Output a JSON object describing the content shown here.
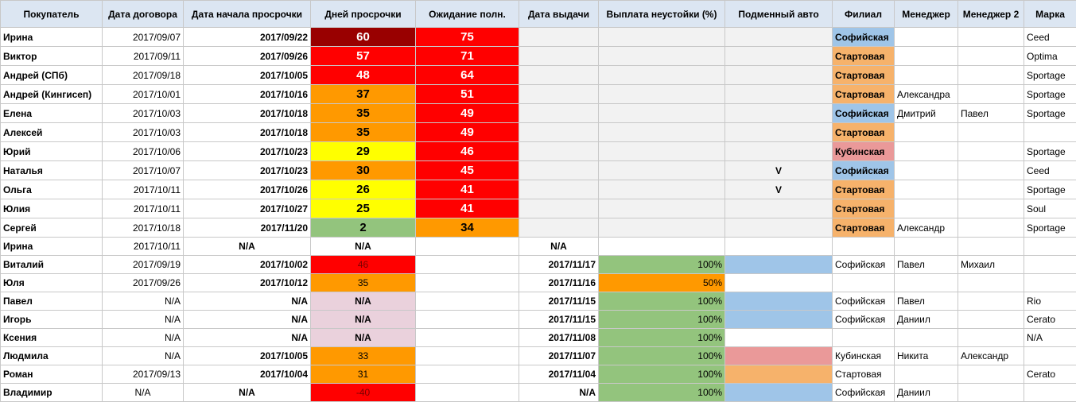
{
  "headers": {
    "buyer": "Покупатель",
    "contract_date": "Дата договора",
    "overdue_start": "Дата начала просрочки",
    "overdue_days": "Дней просрочки",
    "wait_full": "Ожидание полн.",
    "issue_date": "Дата выдачи",
    "penalty": "Выплата неустойки (%)",
    "replacement_car": "Подменный авто",
    "branch": "Филиал",
    "manager": "Менеджер",
    "manager2": "Менеджер 2",
    "brand": "Марка"
  },
  "rows": [
    {
      "buyer": "Ирина",
      "contract_date": "2017/09/07",
      "overdue_start": "2017/09/22",
      "overdue_days": "60",
      "wait_full": "75",
      "issue_date": "",
      "penalty": "",
      "replacement_car": "",
      "branch": "Софийская",
      "manager": "",
      "manager2": "",
      "brand": "Ceed"
    },
    {
      "buyer": "Виктор",
      "contract_date": "2017/09/11",
      "overdue_start": "2017/09/26",
      "overdue_days": "57",
      "wait_full": "71",
      "issue_date": "",
      "penalty": "",
      "replacement_car": "",
      "branch": "Стартовая",
      "manager": "",
      "manager2": "",
      "brand": "Optima"
    },
    {
      "buyer": "Андрей (СПб)",
      "contract_date": "2017/09/18",
      "overdue_start": "2017/10/05",
      "overdue_days": "48",
      "wait_full": "64",
      "issue_date": "",
      "penalty": "",
      "replacement_car": "",
      "branch": "Стартовая",
      "manager": "",
      "manager2": "",
      "brand": "Sportage"
    },
    {
      "buyer": "Андрей (Кингисеп)",
      "contract_date": "2017/10/01",
      "overdue_start": "2017/10/16",
      "overdue_days": "37",
      "wait_full": "51",
      "issue_date": "",
      "penalty": "",
      "replacement_car": "",
      "branch": "Стартовая",
      "manager": "Александра",
      "manager2": "",
      "brand": "Sportage"
    },
    {
      "buyer": "Елена",
      "contract_date": "2017/10/03",
      "overdue_start": "2017/10/18",
      "overdue_days": "35",
      "wait_full": "49",
      "issue_date": "",
      "penalty": "",
      "replacement_car": "",
      "branch": "Софийская",
      "manager": "Дмитрий",
      "manager2": "Павел",
      "brand": "Sportage"
    },
    {
      "buyer": "Алексей",
      "contract_date": "2017/10/03",
      "overdue_start": "2017/10/18",
      "overdue_days": "35",
      "wait_full": "49",
      "issue_date": "",
      "penalty": "",
      "replacement_car": "",
      "branch": "Стартовая",
      "manager": "",
      "manager2": "",
      "brand": ""
    },
    {
      "buyer": "Юрий",
      "contract_date": "2017/10/06",
      "overdue_start": "2017/10/23",
      "overdue_days": "29",
      "wait_full": "46",
      "issue_date": "",
      "penalty": "",
      "replacement_car": "",
      "branch": "Кубинская",
      "manager": "",
      "manager2": "",
      "brand": "Sportage"
    },
    {
      "buyer": "Наталья",
      "contract_date": "2017/10/07",
      "overdue_start": "2017/10/23",
      "overdue_days": "30",
      "wait_full": "45",
      "issue_date": "",
      "penalty": "",
      "replacement_car": "V",
      "branch": "Софийская",
      "manager": "",
      "manager2": "",
      "brand": "Ceed"
    },
    {
      "buyer": "Ольга",
      "contract_date": "2017/10/11",
      "overdue_start": "2017/10/26",
      "overdue_days": "26",
      "wait_full": "41",
      "issue_date": "",
      "penalty": "",
      "replacement_car": "V",
      "branch": "Стартовая",
      "manager": "",
      "manager2": "",
      "brand": "Sportage"
    },
    {
      "buyer": "Юлия",
      "contract_date": "2017/10/11",
      "overdue_start": "2017/10/27",
      "overdue_days": "25",
      "wait_full": "41",
      "issue_date": "",
      "penalty": "",
      "replacement_car": "",
      "branch": "Стартовая",
      "manager": "",
      "manager2": "",
      "brand": "Soul"
    },
    {
      "buyer": "Сергей",
      "contract_date": "2017/10/18",
      "overdue_start": "2017/11/20",
      "overdue_days": "2",
      "wait_full": "34",
      "issue_date": "",
      "penalty": "",
      "replacement_car": "",
      "branch": "Стартовая",
      "manager": "Александр",
      "manager2": "",
      "brand": "Sportage"
    },
    {
      "buyer": "Ирина",
      "contract_date": "2017/10/11",
      "overdue_start": "N/A",
      "overdue_days": "N/A",
      "wait_full": "",
      "issue_date": "N/A",
      "penalty": "",
      "replacement_car": "",
      "branch": "",
      "manager": "",
      "manager2": "",
      "brand": ""
    },
    {
      "buyer": "Виталий",
      "contract_date": "2017/09/19",
      "overdue_start": "2017/10/02",
      "overdue_days": "46",
      "wait_full": "",
      "issue_date": "2017/11/17",
      "penalty": "100%",
      "replacement_car": "",
      "branch": "Софийская",
      "manager": "Павел",
      "manager2": "Михаил",
      "brand": ""
    },
    {
      "buyer": "Юля",
      "contract_date": "2017/09/26",
      "overdue_start": "2017/10/12",
      "overdue_days": "35",
      "wait_full": "",
      "issue_date": "2017/11/16",
      "penalty": "50%",
      "replacement_car": "",
      "branch": "",
      "manager": "",
      "manager2": "",
      "brand": ""
    },
    {
      "buyer": "Павел",
      "contract_date": "N/A",
      "overdue_start": "N/A",
      "overdue_days": "N/A",
      "wait_full": "",
      "issue_date": "2017/11/15",
      "penalty": "100%",
      "replacement_car": "",
      "branch": "Софийская",
      "manager": "Павел",
      "manager2": "",
      "brand": "Rio"
    },
    {
      "buyer": "Игорь",
      "contract_date": "N/A",
      "overdue_start": "N/A",
      "overdue_days": "N/A",
      "wait_full": "",
      "issue_date": "2017/11/15",
      "penalty": "100%",
      "replacement_car": "",
      "branch": "Софийская",
      "manager": "Даниил",
      "manager2": "",
      "brand": "Cerato"
    },
    {
      "buyer": "Ксения",
      "contract_date": "N/A",
      "overdue_start": "N/A",
      "overdue_days": "N/A",
      "wait_full": "",
      "issue_date": "2017/11/08",
      "penalty": "100%",
      "replacement_car": "",
      "branch": "",
      "manager": "",
      "manager2": "",
      "brand": "N/A"
    },
    {
      "buyer": "Людмила",
      "contract_date": "N/A",
      "overdue_start": "2017/10/05",
      "overdue_days": "33",
      "wait_full": "",
      "issue_date": "2017/11/07",
      "penalty": "100%",
      "replacement_car": "",
      "branch": "Кубинская",
      "manager": "Никита",
      "manager2": "Александр",
      "brand": ""
    },
    {
      "buyer": "Роман",
      "contract_date": "2017/09/13",
      "overdue_start": "2017/10/04",
      "overdue_days": "31",
      "wait_full": "",
      "issue_date": "2017/11/04",
      "penalty": "100%",
      "replacement_car": "",
      "branch": "Стартовая",
      "manager": "",
      "manager2": "",
      "brand": "Cerato"
    },
    {
      "buyer": "Владимир",
      "contract_date": "N/A",
      "overdue_start": "N/A",
      "overdue_days": "-40",
      "wait_full": "",
      "issue_date": "N/A",
      "penalty": "100%",
      "replacement_car": "",
      "branch": "Софийская",
      "manager": "Даниил",
      "manager2": "",
      "brand": ""
    }
  ],
  "colors": {
    "header_bg": "#dce6f2",
    "dark_red": "#990000",
    "red": "#ff0000",
    "orange": "#ff9900",
    "yellow": "#ffff00",
    "green": "#93c47d",
    "pink": "#ead1dc",
    "branch_sofia": "#9fc5e8",
    "branch_start": "#f6b26b",
    "branch_kubin": "#ea9999",
    "grey": "#f2f2f2"
  }
}
